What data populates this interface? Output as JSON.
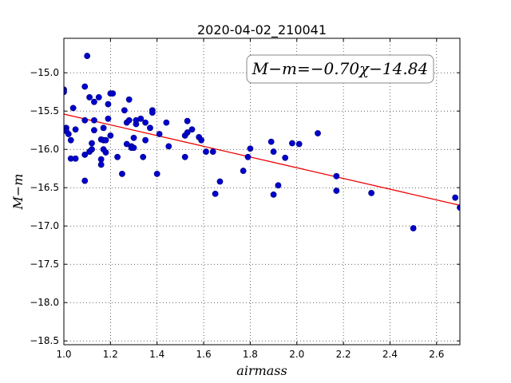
{
  "chart_data": {
    "type": "scatter",
    "title": "2020-04-02_210041",
    "xlabel": "airmass",
    "ylabel": "M−m",
    "xlim": [
      1.0,
      2.7
    ],
    "ylim": [
      -18.55,
      -14.55
    ],
    "x_ticks": [
      1.0,
      1.2,
      1.4,
      1.6,
      1.8,
      2.0,
      2.2,
      2.4,
      2.6
    ],
    "x_tick_labels": [
      "1.0",
      "1.2",
      "1.4",
      "1.6",
      "1.8",
      "2.0",
      "2.2",
      "2.4",
      "2.6"
    ],
    "y_ticks": [
      -15.0,
      -15.5,
      -16.0,
      -16.5,
      -17.0,
      -17.5,
      -18.0,
      -18.5
    ],
    "y_tick_labels": [
      "−15.0",
      "−15.5",
      "−16.0",
      "−16.5",
      "−17.0",
      "−17.5",
      "−18.0",
      "−18.5"
    ],
    "grid": true,
    "annotation": "M−m=−0.70χ−14.84",
    "annotation_position": "top-right",
    "fit": {
      "slope": -0.7,
      "intercept": -14.84
    },
    "colors": {
      "points": "#0000cc",
      "point_edge": "#00007a",
      "fit_line": "#ee0000"
    },
    "points": [
      {
        "x": 1.0,
        "y": -15.22
      },
      {
        "x": 1.0,
        "y": -15.25
      },
      {
        "x": 1.01,
        "y": -15.72
      },
      {
        "x": 1.01,
        "y": -15.76
      },
      {
        "x": 1.02,
        "y": -15.8
      },
      {
        "x": 1.03,
        "y": -15.88
      },
      {
        "x": 1.03,
        "y": -16.12
      },
      {
        "x": 1.04,
        "y": -15.46
      },
      {
        "x": 1.05,
        "y": -15.74
      },
      {
        "x": 1.05,
        "y": -16.12
      },
      {
        "x": 1.09,
        "y": -15.18
      },
      {
        "x": 1.09,
        "y": -15.62
      },
      {
        "x": 1.09,
        "y": -16.07
      },
      {
        "x": 1.09,
        "y": -16.41
      },
      {
        "x": 1.1,
        "y": -14.78
      },
      {
        "x": 1.11,
        "y": -15.32
      },
      {
        "x": 1.11,
        "y": -16.03
      },
      {
        "x": 1.12,
        "y": -15.92
      },
      {
        "x": 1.12,
        "y": -16.0
      },
      {
        "x": 1.13,
        "y": -15.38
      },
      {
        "x": 1.13,
        "y": -15.62
      },
      {
        "x": 1.13,
        "y": -15.75
      },
      {
        "x": 1.15,
        "y": -15.32
      },
      {
        "x": 1.16,
        "y": -15.87
      },
      {
        "x": 1.16,
        "y": -16.13
      },
      {
        "x": 1.16,
        "y": -16.2
      },
      {
        "x": 1.17,
        "y": -15.72
      },
      {
        "x": 1.17,
        "y": -15.88
      },
      {
        "x": 1.17,
        "y": -16.0
      },
      {
        "x": 1.18,
        "y": -16.04
      },
      {
        "x": 1.18,
        "y": -15.88
      },
      {
        "x": 1.19,
        "y": -15.41
      },
      {
        "x": 1.19,
        "y": -15.6
      },
      {
        "x": 1.2,
        "y": -15.82
      },
      {
        "x": 1.2,
        "y": -15.27
      },
      {
        "x": 1.21,
        "y": -15.27
      },
      {
        "x": 1.23,
        "y": -16.1
      },
      {
        "x": 1.25,
        "y": -16.32
      },
      {
        "x": 1.26,
        "y": -15.49
      },
      {
        "x": 1.27,
        "y": -15.65
      },
      {
        "x": 1.27,
        "y": -15.93
      },
      {
        "x": 1.28,
        "y": -15.35
      },
      {
        "x": 1.28,
        "y": -15.62
      },
      {
        "x": 1.29,
        "y": -15.96
      },
      {
        "x": 1.29,
        "y": -15.98
      },
      {
        "x": 1.3,
        "y": -15.85
      },
      {
        "x": 1.3,
        "y": -15.98
      },
      {
        "x": 1.31,
        "y": -15.67
      },
      {
        "x": 1.31,
        "y": -15.62
      },
      {
        "x": 1.33,
        "y": -15.6
      },
      {
        "x": 1.34,
        "y": -16.1
      },
      {
        "x": 1.35,
        "y": -15.65
      },
      {
        "x": 1.35,
        "y": -15.88
      },
      {
        "x": 1.37,
        "y": -15.72
      },
      {
        "x": 1.38,
        "y": -15.49
      },
      {
        "x": 1.38,
        "y": -15.52
      },
      {
        "x": 1.4,
        "y": -16.32
      },
      {
        "x": 1.41,
        "y": -15.8
      },
      {
        "x": 1.44,
        "y": -15.65
      },
      {
        "x": 1.45,
        "y": -15.96
      },
      {
        "x": 1.52,
        "y": -16.1
      },
      {
        "x": 1.52,
        "y": -15.82
      },
      {
        "x": 1.53,
        "y": -15.78
      },
      {
        "x": 1.53,
        "y": -15.63
      },
      {
        "x": 1.55,
        "y": -15.74
      },
      {
        "x": 1.58,
        "y": -15.84
      },
      {
        "x": 1.59,
        "y": -15.88
      },
      {
        "x": 1.61,
        "y": -16.03
      },
      {
        "x": 1.64,
        "y": -16.03
      },
      {
        "x": 1.65,
        "y": -16.58
      },
      {
        "x": 1.67,
        "y": -16.42
      },
      {
        "x": 1.77,
        "y": -16.28
      },
      {
        "x": 1.79,
        "y": -16.1
      },
      {
        "x": 1.8,
        "y": -15.99
      },
      {
        "x": 1.89,
        "y": -15.9
      },
      {
        "x": 1.9,
        "y": -16.03
      },
      {
        "x": 1.9,
        "y": -16.59
      },
      {
        "x": 1.92,
        "y": -16.47
      },
      {
        "x": 1.95,
        "y": -16.11
      },
      {
        "x": 1.98,
        "y": -15.92
      },
      {
        "x": 2.01,
        "y": -15.93
      },
      {
        "x": 2.09,
        "y": -15.79
      },
      {
        "x": 2.17,
        "y": -16.35
      },
      {
        "x": 2.17,
        "y": -16.54
      },
      {
        "x": 2.32,
        "y": -16.57
      },
      {
        "x": 2.5,
        "y": -17.03
      },
      {
        "x": 2.68,
        "y": -16.63
      },
      {
        "x": 2.7,
        "y": -16.76
      }
    ]
  }
}
